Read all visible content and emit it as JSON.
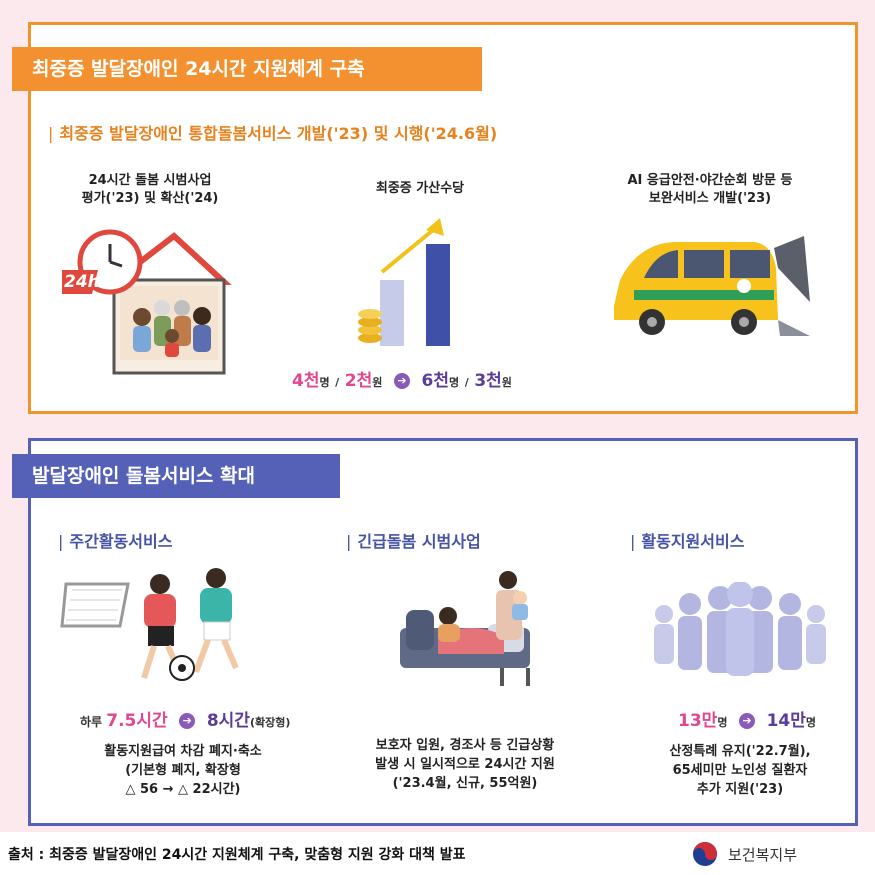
{
  "section1": {
    "title": "최중증 발달장애인 24시간 지원체계 구축",
    "subheading": "최중증 발달장애인 통합돌봄서비스 개발('23) 및 시행('24.6월)",
    "items": [
      {
        "caption_lines": [
          "24시간 돌봄 시범사업",
          "평가('23) 및 확산('24)"
        ],
        "clock_label": "24h"
      },
      {
        "caption_lines": [
          "최중증 가산수당"
        ]
      },
      {
        "caption_lines": [
          "AI 응급안전·야간순회 방문 등",
          "보완서비스 개발('23)"
        ]
      }
    ],
    "allowance": {
      "before_people": "4천",
      "unit_people": "명",
      "before_amount": "2천",
      "unit_won": "원",
      "after_people": "6천",
      "after_amount": "3천",
      "sep": "/"
    }
  },
  "section2": {
    "title": "발달장애인 돌봄서비스 확대",
    "columns": [
      {
        "heading": "주간활동서비스",
        "stat": {
          "prefix": "하루 ",
          "before": "7.5시간",
          "after": "8시간",
          "suffix": "(확장형)"
        },
        "desc_lines": [
          "활동지원급여 차감 폐지·축소",
          "(기본형 폐지, 확장형",
          "△ 56 → △ 22시간)"
        ]
      },
      {
        "heading": "긴급돌봄 시범사업",
        "desc_lines": [
          "보호자 입원, 경조사 등 긴급상황",
          "발생 시 일시적으로 24시간 지원",
          "('23.4월, 신규, 55억원)"
        ]
      },
      {
        "heading": "활동지원서비스",
        "stat": {
          "before": "13만",
          "after": "14만",
          "unit": "명"
        },
        "desc_lines": [
          "산정특례 유지('22.7월),",
          "65세미만 노인성 질환자",
          "추가 지원('23)"
        ]
      }
    ]
  },
  "footer": {
    "source": "출처 : 최중증 발달장애인 24시간 지원체계 구축, 맞춤형 지원 강화 대책 발표",
    "ministry": "보건복지부"
  },
  "colors": {
    "orange": "#f39130",
    "blue": "#5461b7",
    "pink": "#e2468f",
    "purple": "#5b3c9b",
    "background": "#fbe9ee"
  }
}
